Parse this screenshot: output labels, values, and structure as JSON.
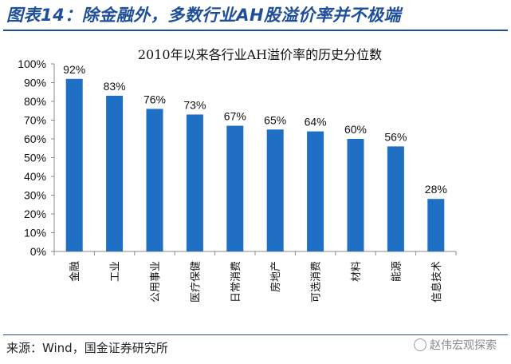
{
  "figure_title": "图表14：除金融外，多数行业AH股溢价率并不极端",
  "source_text": "来源：Wind，国金证券研究所",
  "watermark": "赵伟宏观探索",
  "colors": {
    "bar": "#1f6fc5",
    "title": "#1f4e9a",
    "rule": "#1f4e9a"
  },
  "chart_data": {
    "type": "bar",
    "title": "2010年以来各行业AH溢价率的历史分位数",
    "xlabel": "",
    "ylabel": "",
    "categories": [
      "金融",
      "工业",
      "公用事业",
      "医疗保健",
      "日常消费",
      "房地产",
      "可选消费",
      "材料",
      "能源",
      "信息技术"
    ],
    "values": [
      92,
      83,
      76,
      73,
      67,
      65,
      64,
      60,
      56,
      28
    ],
    "data_labels": [
      "92%",
      "83%",
      "76%",
      "73%",
      "67%",
      "65%",
      "64%",
      "60%",
      "56%",
      "28%"
    ],
    "yticks": [
      "0%",
      "10%",
      "20%",
      "30%",
      "40%",
      "50%",
      "60%",
      "70%",
      "80%",
      "90%",
      "100%"
    ],
    "ylim": [
      0,
      100
    ],
    "grid": false,
    "legend": "none"
  }
}
